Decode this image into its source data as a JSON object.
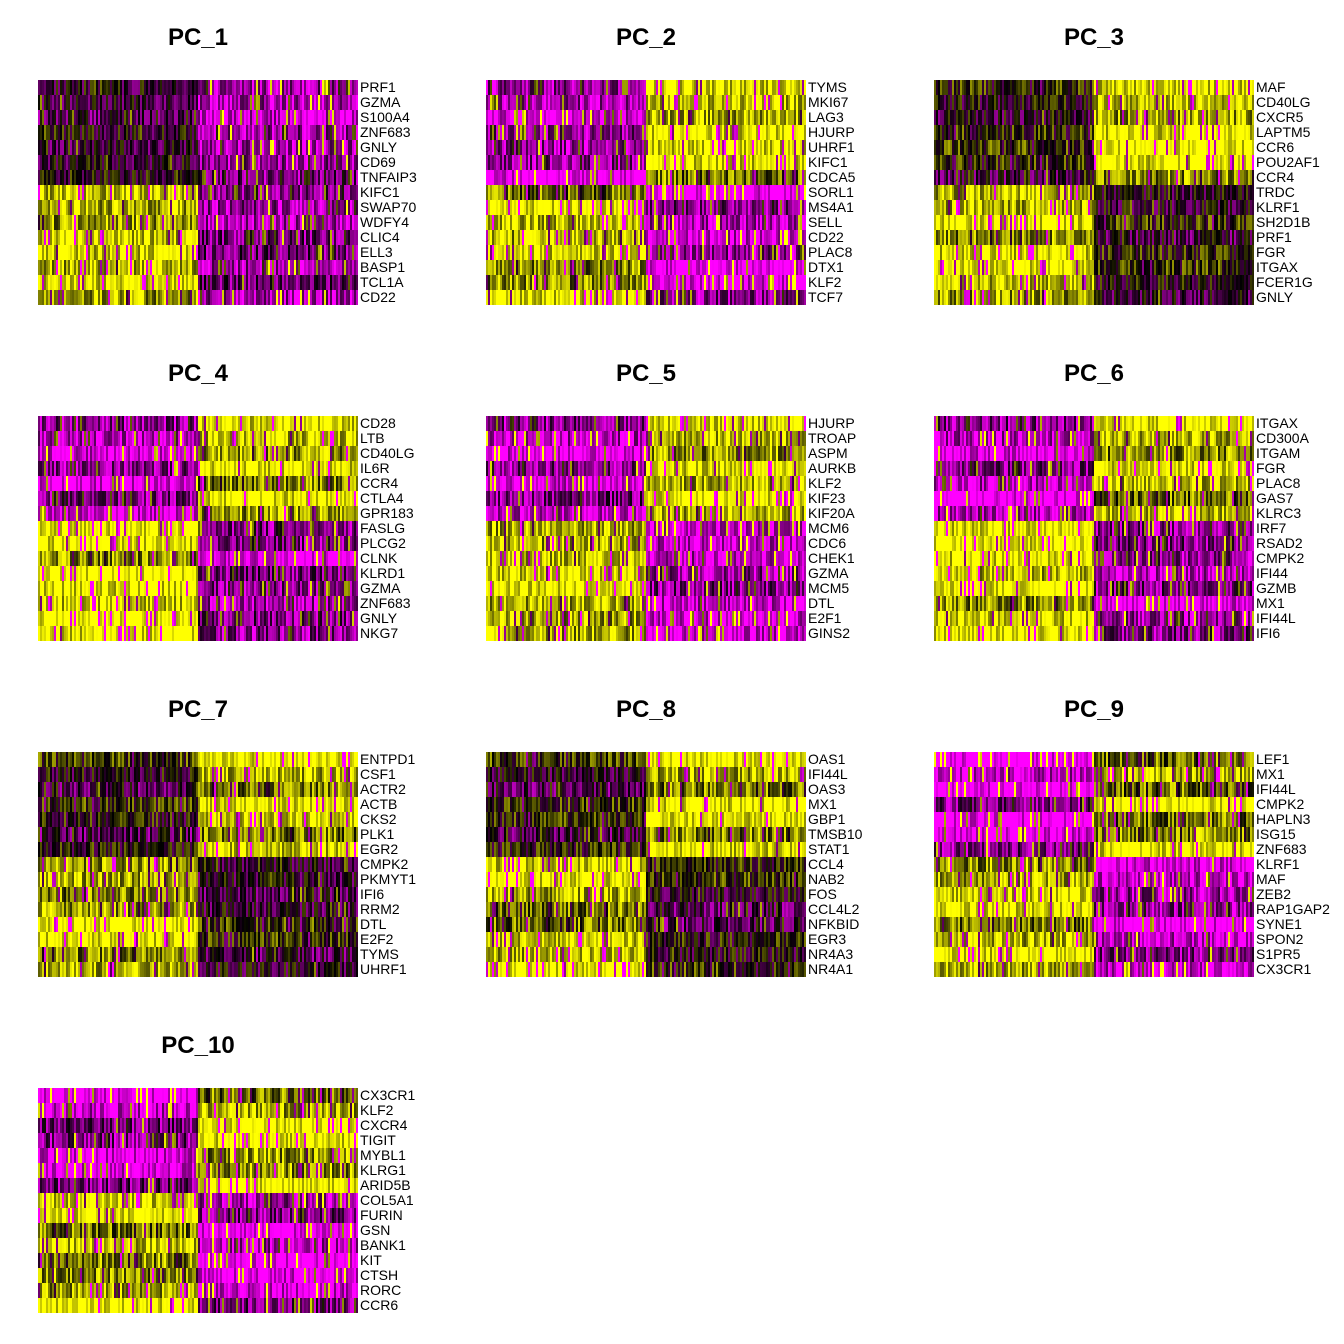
{
  "chart_data": [
    {
      "type": "heatmap",
      "title": "PC_1",
      "genes": [
        "PRF1",
        "GZMA",
        "S100A4",
        "ZNF683",
        "GNLY",
        "CD69",
        "TNFAIP3",
        "KIFC1",
        "SWAP70",
        "WDFY4",
        "CLIC4",
        "ELL3",
        "BASP1",
        "TCL1A",
        "CD22"
      ],
      "split": 0.5,
      "blocks": [
        [
          "mid",
          "low"
        ],
        [
          "high",
          "purple"
        ]
      ]
    },
    {
      "type": "heatmap",
      "title": "PC_2",
      "genes": [
        "TYMS",
        "MKI67",
        "LAG3",
        "HJURP",
        "UHRF1",
        "KIFC1",
        "CDCA5",
        "SORL1",
        "MS4A1",
        "SELL",
        "CD22",
        "PLAC8",
        "DTX1",
        "KLF2",
        "TCF7"
      ],
      "split": 0.5,
      "blocks": [
        [
          "low",
          "high"
        ],
        [
          "high",
          "low"
        ]
      ]
    },
    {
      "type": "heatmap",
      "title": "PC_3",
      "genes": [
        "MAF",
        "CD40LG",
        "CXCR5",
        "LAPTM5",
        "CCR6",
        "POU2AF1",
        "CCR4",
        "TRDC",
        "KLRF1",
        "SH2D1B",
        "PRF1",
        "FGR",
        "ITGAX",
        "FCER1G",
        "GNLY"
      ],
      "split": 0.5,
      "blocks": [
        [
          "dark",
          "high"
        ],
        [
          "high",
          "dark"
        ]
      ]
    },
    {
      "type": "heatmap",
      "title": "PC_4",
      "genes": [
        "CD28",
        "LTB",
        "CD40LG",
        "IL6R",
        "CCR4",
        "CTLA4",
        "GPR183",
        "FASLG",
        "PLCG2",
        "CLNK",
        "KLRD1",
        "GZMA",
        "ZNF683",
        "GNLY",
        "NKG7"
      ],
      "split": 0.5,
      "blocks": [
        [
          "low",
          "high"
        ],
        [
          "high",
          "low"
        ]
      ]
    },
    {
      "type": "heatmap",
      "title": "PC_5",
      "genes": [
        "HJURP",
        "TROAP",
        "ASPM",
        "AURKB",
        "KLF2",
        "KIF23",
        "KIF20A",
        "MCM6",
        "CDC6",
        "CHEK1",
        "GZMA",
        "MCM5",
        "DTL",
        "E2F1",
        "GINS2"
      ],
      "split": 0.5,
      "blocks": [
        [
          "low",
          "high"
        ],
        [
          "high",
          "low"
        ]
      ]
    },
    {
      "type": "heatmap",
      "title": "PC_6",
      "genes": [
        "ITGAX",
        "CD300A",
        "ITGAM",
        "FGR",
        "PLAC8",
        "GAS7",
        "KLRC3",
        "IRF7",
        "RSAD2",
        "CMPK2",
        "IFI44",
        "GZMB",
        "MX1",
        "IFI44L",
        "IFI6"
      ],
      "split": 0.5,
      "blocks": [
        [
          "low",
          "high"
        ],
        [
          "high",
          "low"
        ]
      ]
    },
    {
      "type": "heatmap",
      "title": "PC_7",
      "genes": [
        "ENTPD1",
        "CSF1",
        "ACTR2",
        "ACTB",
        "CKS2",
        "PLK1",
        "EGR2",
        "CMPK2",
        "PKMYT1",
        "IFI6",
        "RRM2",
        "DTL",
        "E2F2",
        "TYMS",
        "UHRF1"
      ],
      "split": 0.5,
      "blocks": [
        [
          "dark",
          "high"
        ],
        [
          "high",
          "dark"
        ]
      ]
    },
    {
      "type": "heatmap",
      "title": "PC_8",
      "genes": [
        "OAS1",
        "IFI44L",
        "OAS3",
        "MX1",
        "GBP1",
        "TMSB10",
        "STAT1",
        "CCL4",
        "NAB2",
        "FOS",
        "CCL4L2",
        "NFKBID",
        "EGR3",
        "NR4A3",
        "NR4A1"
      ],
      "split": 0.5,
      "blocks": [
        [
          "dark",
          "high"
        ],
        [
          "high",
          "dark"
        ]
      ]
    },
    {
      "type": "heatmap",
      "title": "PC_9",
      "genes": [
        "LEF1",
        "MX1",
        "IFI44L",
        "CMPK2",
        "HAPLN3",
        "ISG15",
        "ZNF683",
        "KLRF1",
        "MAF",
        "ZEB2",
        "RAP1GAP2",
        "SYNE1",
        "SPON2",
        "S1PR5",
        "CX3CR1"
      ],
      "split": 0.5,
      "blocks": [
        [
          "low",
          "high"
        ],
        [
          "high",
          "low"
        ]
      ]
    },
    {
      "type": "heatmap",
      "title": "PC_10",
      "genes": [
        "CX3CR1",
        "KLF2",
        "CXCR4",
        "TIGIT",
        "MYBL1",
        "KLRG1",
        "ARID5B",
        "COL5A1",
        "FURIN",
        "GSN",
        "BANK1",
        "KIT",
        "CTSH",
        "RORC",
        "CCR6"
      ],
      "split": 0.5,
      "blocks": [
        [
          "low",
          "high"
        ],
        [
          "high",
          "low"
        ]
      ]
    }
  ],
  "colors": {
    "low": "#ff00ff",
    "mid": "#000000",
    "high": "#ffff00"
  }
}
